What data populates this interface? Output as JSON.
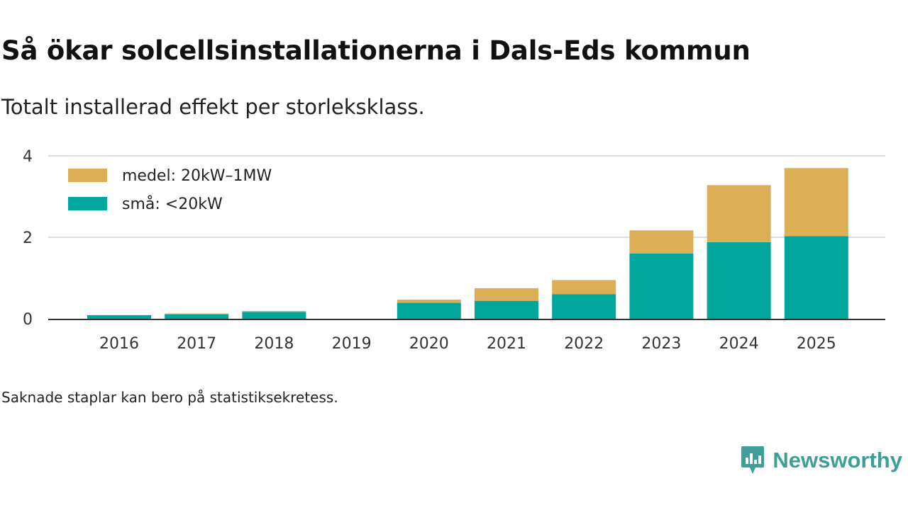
{
  "header": {
    "title": "Så ökar solcellsinstallationerna i Dals-Eds kommun",
    "subtitle": "Totalt installerad effekt per storleksklass."
  },
  "footer": {
    "note": "Saknade staplar kan bero på statistiksekretess.",
    "brand": "Newsworthy"
  },
  "colors": {
    "small": "#00a69c",
    "medium": "#dcae55",
    "brand": "#3f9e96",
    "grid": "#dddddd",
    "axis": "#333333"
  },
  "chart_data": {
    "type": "bar",
    "stacked": true,
    "categories": [
      "2016",
      "2017",
      "2018",
      "2019",
      "2020",
      "2021",
      "2022",
      "2023",
      "2024",
      "2025"
    ],
    "series": [
      {
        "name": "små: <20kW",
        "color": "#00a69c",
        "values": [
          0.09,
          0.11,
          0.17,
          0,
          0.39,
          0.44,
          0.6,
          1.6,
          1.88,
          2.03
        ]
      },
      {
        "name": "medel: 20kW–1MW",
        "color": "#dcae55",
        "values": [
          0.0,
          0.02,
          0.02,
          0,
          0.08,
          0.31,
          0.35,
          0.57,
          1.4,
          1.67
        ]
      }
    ],
    "legend_order": [
      "medel: 20kW–1MW",
      "små: <20kW"
    ],
    "legend_position": "top-left",
    "yticks": [
      0,
      2,
      4
    ],
    "ylim": [
      0,
      4
    ],
    "xlabel": "",
    "ylabel": "",
    "grid": true
  }
}
